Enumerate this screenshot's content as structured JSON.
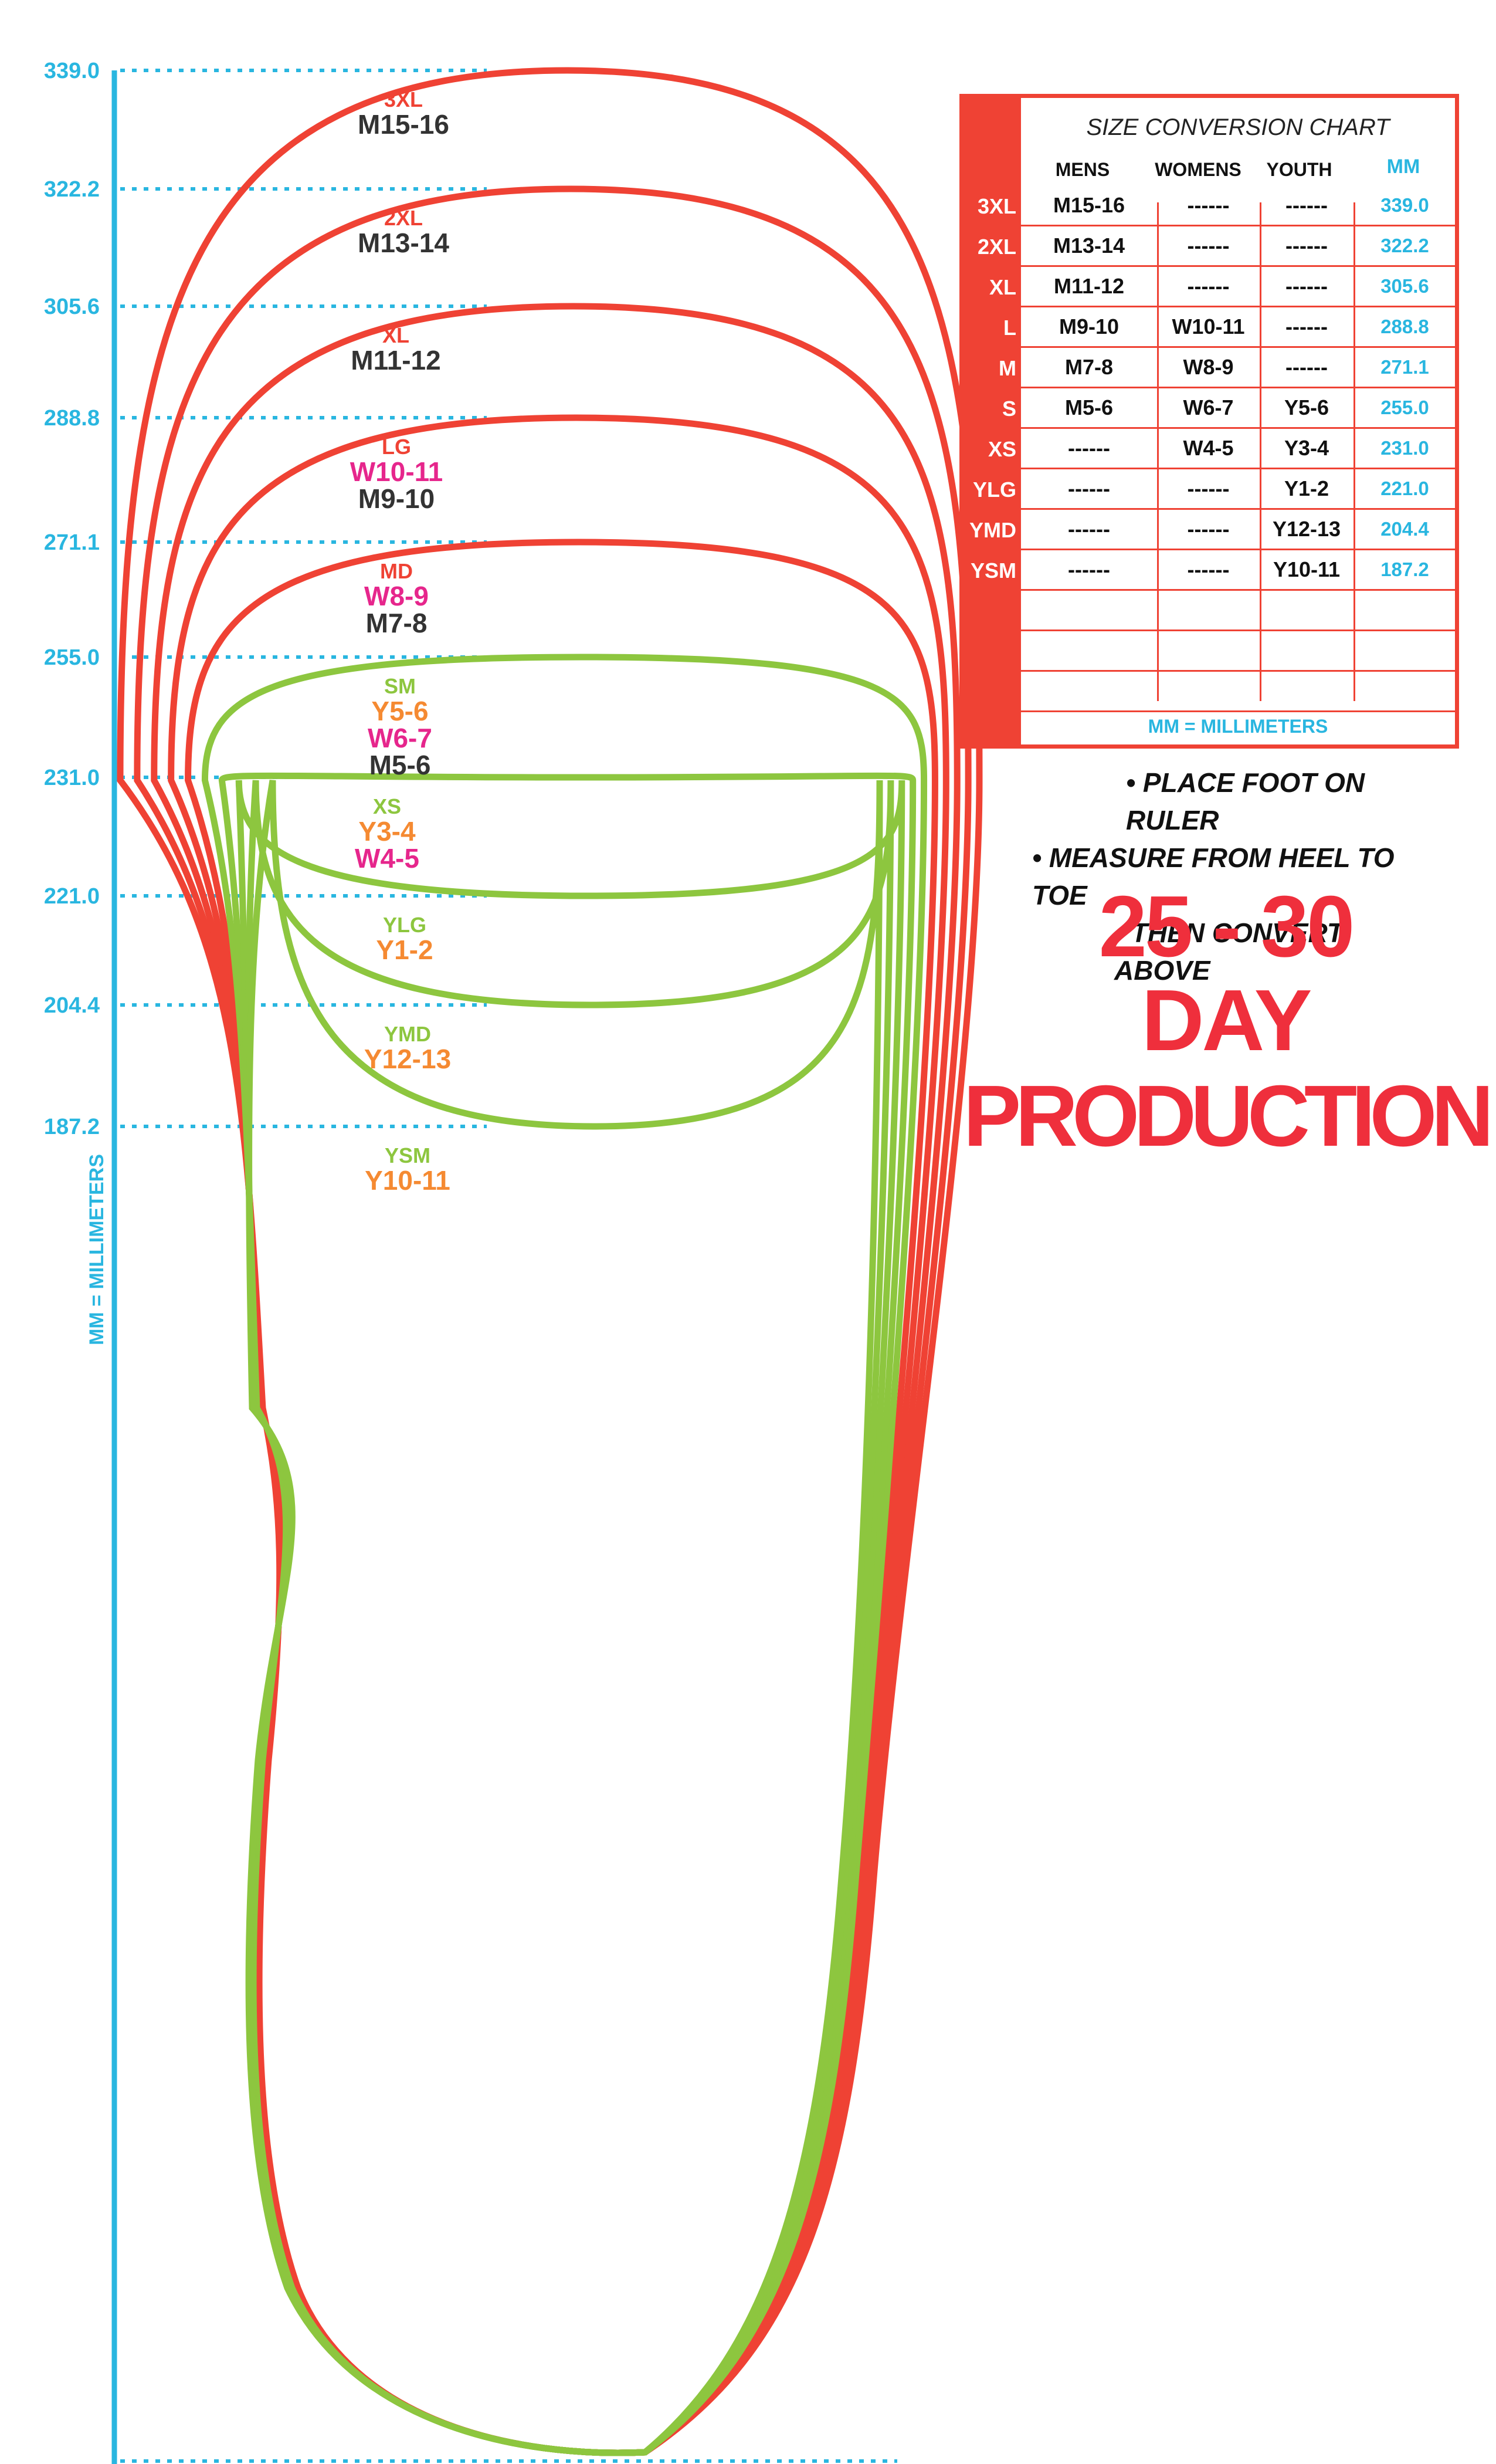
{
  "ruler": {
    "ticks": [
      "339.0",
      "322.2",
      "305.6",
      "288.8",
      "271.1",
      "255.0",
      "231.0",
      "221.0",
      "204.4",
      "187.2"
    ],
    "axis_label": "MM = MILLIMETERS",
    "color": "#29b6e0"
  },
  "outlines": [
    {
      "code": "3XL",
      "lines": [
        "M15-16"
      ],
      "color": "#ef4234"
    },
    {
      "code": "2XL",
      "lines": [
        "M13-14"
      ],
      "color": "#ef4234"
    },
    {
      "code": "XL",
      "lines": [
        "M11-12"
      ],
      "color": "#ef4234"
    },
    {
      "code": "LG",
      "lines": [
        "W10-11",
        "M9-10"
      ],
      "color": "#ef4234"
    },
    {
      "code": "MD",
      "lines": [
        "W8-9",
        "M7-8"
      ],
      "color": "#ef4234"
    },
    {
      "code": "SM",
      "lines": [
        "Y5-6",
        "W6-7",
        "M5-6"
      ],
      "color": "#8dc63f"
    },
    {
      "code": "XS",
      "lines": [
        "Y3-4",
        "W4-5"
      ],
      "color": "#8dc63f"
    },
    {
      "code": "YLG",
      "lines": [
        "Y1-2"
      ],
      "color": "#8dc63f"
    },
    {
      "code": "YMD",
      "lines": [
        "Y12-13"
      ],
      "color": "#8dc63f"
    },
    {
      "code": "YSM",
      "lines": [
        "Y10-11"
      ],
      "color": "#8dc63f"
    }
  ],
  "label_colors": {
    "mens": "#333333",
    "womens": "#e6268c",
    "youth": "#f58a32",
    "red_code": "#ef4234",
    "green_code": "#8dc63f"
  },
  "table": {
    "title": "SIZE CONVERSION CHART",
    "headers": {
      "mens": "MENS",
      "womens": "WOMENS",
      "youth": "YOUTH",
      "mm": "MM"
    },
    "rows": [
      {
        "size": "3XL",
        "mens": "M15-16",
        "womens": "------",
        "youth": "------",
        "mm": "339.0"
      },
      {
        "size": "2XL",
        "mens": "M13-14",
        "womens": "------",
        "youth": "------",
        "mm": "322.2"
      },
      {
        "size": "XL",
        "mens": "M11-12",
        "womens": "------",
        "youth": "------",
        "mm": "305.6"
      },
      {
        "size": "L",
        "mens": "M9-10",
        "womens": "W10-11",
        "youth": "------",
        "mm": "288.8"
      },
      {
        "size": "M",
        "mens": "M7-8",
        "womens": "W8-9",
        "youth": "------",
        "mm": "271.1"
      },
      {
        "size": "S",
        "mens": "M5-6",
        "womens": "W6-7",
        "youth": "Y5-6",
        "mm": "255.0"
      },
      {
        "size": "XS",
        "mens": "------",
        "womens": "W4-5",
        "youth": "Y3-4",
        "mm": "231.0"
      },
      {
        "size": "YLG",
        "mens": "------",
        "womens": "------",
        "youth": "Y1-2",
        "mm": "221.0"
      },
      {
        "size": "YMD",
        "mens": "------",
        "womens": "------",
        "youth": "Y12-13",
        "mm": "204.4"
      },
      {
        "size": "YSM",
        "mens": "------",
        "womens": "------",
        "youth": "Y10-11",
        "mm": "187.2"
      },
      {
        "size": "",
        "mens": "",
        "womens": "",
        "youth": "",
        "mm": ""
      },
      {
        "size": "",
        "mens": "",
        "womens": "",
        "youth": "",
        "mm": ""
      },
      {
        "size": "",
        "mens": "",
        "womens": "",
        "youth": "",
        "mm": ""
      }
    ],
    "footer": "MM = MILLIMETERS"
  },
  "instructions": [
    "• PLACE FOOT ON RULER",
    "• MEASURE FROM HEEL TO TOE",
    "• THEN CONVERT ABOVE"
  ],
  "production": {
    "line1": "25 - 30",
    "line2": "DAY",
    "line3": "PRODUCTION",
    "color": "#ef2f3c"
  }
}
